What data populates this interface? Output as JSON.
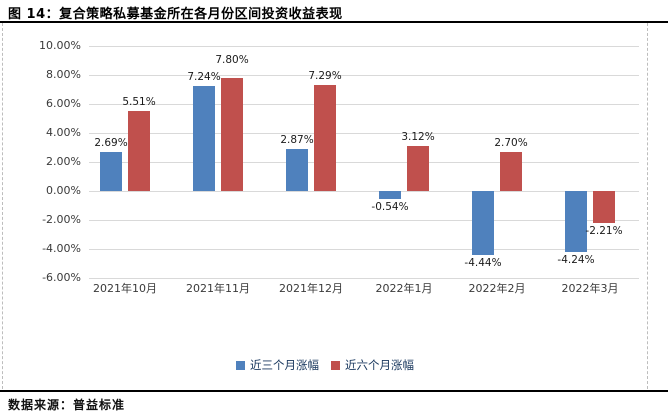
{
  "figure": {
    "title": "图 14：复合策略私募基金所在各月份区间投资收益表现",
    "source": "数据来源：普益标准"
  },
  "colors": {
    "series_three_month": "#4F81BD",
    "series_six_month": "#C0504D",
    "gridline": "#D9D9D9",
    "axis_text": "#3A3A3A",
    "legend_text": "#17365D",
    "frame_rule": "#000000",
    "frame_dashed_border": "#BDBDBD"
  },
  "chart_data": {
    "type": "bar",
    "title": "复合策略私募基金所在各月份区间投资收益表现",
    "categories": [
      "2021年10月",
      "2021年11月",
      "2021年12月",
      "2022年1月",
      "2022年2月",
      "2022年3月"
    ],
    "series": [
      {
        "name": "近三个月涨幅",
        "color": "#4F81BD",
        "values": [
          2.69,
          7.24,
          2.87,
          -0.54,
          -4.44,
          -4.24
        ]
      },
      {
        "name": "近六个月涨幅",
        "color": "#C0504D",
        "values": [
          5.51,
          7.8,
          7.29,
          3.12,
          2.7,
          -2.21
        ]
      }
    ],
    "value_label_format": "0.00%",
    "ylim": [
      -6,
      10
    ],
    "ytick_values": [
      10,
      8,
      6,
      4,
      2,
      0,
      -2,
      -4,
      -6
    ],
    "ytick_labels": [
      "10.00%",
      "8.00%",
      "6.00%",
      "4.00%",
      "2.00%",
      "0.00%",
      "-2.00%",
      "-4.00%",
      "-6.00%"
    ],
    "grid": true,
    "legend_position": "bottom"
  }
}
